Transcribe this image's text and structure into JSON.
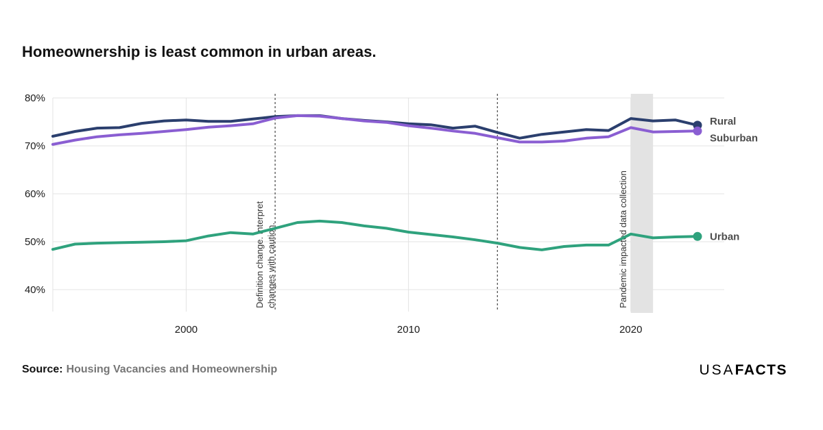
{
  "page": {
    "title": "Homeownership is least common in urban areas.",
    "source_label": "Source:",
    "source_text": "Housing Vacancies and Homeownership",
    "logo": {
      "part1": "USA",
      "part2": "FACTS",
      "color": "#ec127f"
    }
  },
  "chart_data": {
    "type": "line",
    "title": "Homeownership is least common in urban areas.",
    "xlabel": "",
    "ylabel": "",
    "unit": "%",
    "ylim": [
      40,
      80
    ],
    "grid": true,
    "legend_position": "right-of-line-ends",
    "x": [
      1994,
      1995,
      1996,
      1997,
      1998,
      1999,
      2000,
      2001,
      2002,
      2003,
      2004,
      2005,
      2006,
      2007,
      2008,
      2009,
      2010,
      2011,
      2012,
      2013,
      2014,
      2015,
      2016,
      2017,
      2018,
      2019,
      2020,
      2021,
      2022,
      2023
    ],
    "xticks": [
      {
        "value": 2000,
        "label": "2000"
      },
      {
        "value": 2010,
        "label": "2010"
      },
      {
        "value": 2020,
        "label": "2020"
      }
    ],
    "yticks": [
      {
        "value": 80,
        "label": "80%"
      },
      {
        "value": 70,
        "label": "70%"
      },
      {
        "value": 60,
        "label": "60%"
      },
      {
        "value": 50,
        "label": "50%"
      },
      {
        "value": 40,
        "label": "40%"
      }
    ],
    "series": [
      {
        "name": "Rural",
        "color": "#2b3f6e",
        "label_dy": -1,
        "values": [
          72.0,
          73.0,
          73.7,
          73.8,
          74.7,
          75.2,
          75.4,
          75.1,
          75.1,
          75.6,
          76.1,
          76.3,
          76.3,
          75.7,
          75.3,
          75.0,
          74.6,
          74.4,
          73.7,
          74.1,
          72.8,
          71.6,
          72.4,
          72.9,
          73.4,
          73.2,
          75.7,
          75.2,
          75.4,
          74.3
        ]
      },
      {
        "name": "Suburban",
        "color": "#8a5ed2",
        "label_dy": 15,
        "values": [
          70.3,
          71.2,
          71.9,
          72.3,
          72.6,
          73.0,
          73.4,
          73.9,
          74.2,
          74.6,
          75.8,
          76.3,
          76.2,
          75.7,
          75.2,
          74.9,
          74.2,
          73.7,
          73.1,
          72.6,
          71.7,
          70.8,
          70.8,
          71.0,
          71.6,
          71.9,
          73.8,
          72.9,
          73.0,
          73.1
        ]
      },
      {
        "name": "Urban",
        "color": "#2fa27d",
        "label_dy": 5,
        "values": [
          48.4,
          49.5,
          49.7,
          49.8,
          49.9,
          50.0,
          50.2,
          51.2,
          51.9,
          51.6,
          52.8,
          54.0,
          54.3,
          54.0,
          53.3,
          52.8,
          52.0,
          51.5,
          51.0,
          50.4,
          49.7,
          48.8,
          48.3,
          49.0,
          49.3,
          49.3,
          51.6,
          50.8,
          51.0,
          51.1
        ]
      }
    ],
    "annotations": [
      {
        "type": "dashed-line",
        "year": 2004,
        "label_lines": [
          "Definition change. Interpret",
          "changes with caution."
        ]
      },
      {
        "type": "dashed-line",
        "year": 2014,
        "label_lines": []
      },
      {
        "type": "shaded-band",
        "year_start": 2020,
        "year_end": 2021,
        "band_color": "#e3e3e3",
        "label_lines": [
          "Pandemic impacted data collection"
        ]
      }
    ]
  }
}
